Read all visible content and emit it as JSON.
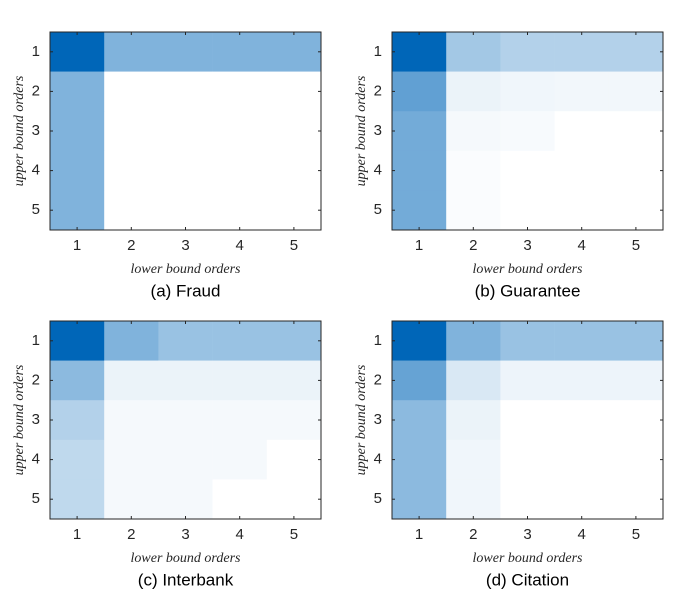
{
  "chart_data": [
    {
      "type": "heatmap",
      "title": "(a) Fraud",
      "xlabel": "lower bound orders",
      "ylabel": "upper bound orders",
      "xlim": [
        0.5,
        5.5
      ],
      "ylim": [
        0.5,
        5.5
      ],
      "xticks": [
        1,
        2,
        3,
        4,
        5
      ],
      "yticks": [
        1,
        2,
        3,
        4,
        5
      ],
      "zlim": [
        0,
        1
      ],
      "colors": [
        "#ffffff",
        "#0066b8"
      ],
      "values": [
        [
          1,
          0.5,
          0.5,
          0.5,
          0.5
        ],
        [
          0.5,
          0,
          0,
          0,
          0
        ],
        [
          0.5,
          0,
          0,
          0,
          0
        ],
        [
          0.5,
          0,
          0,
          0,
          0
        ],
        [
          0.5,
          0,
          0,
          0,
          0
        ]
      ]
    },
    {
      "type": "heatmap",
      "title": "(b) Guarantee",
      "xlabel": "lower bound orders",
      "ylabel": "upper bound orders",
      "xlim": [
        0.5,
        5.5
      ],
      "ylim": [
        0.5,
        5.5
      ],
      "xticks": [
        1,
        2,
        3,
        4,
        5
      ],
      "yticks": [
        1,
        2,
        3,
        4,
        5
      ],
      "zlim": [
        0,
        1
      ],
      "colors": [
        "#ffffff",
        "#0066b8"
      ],
      "values": [
        [
          1,
          0.36,
          0.3,
          0.3,
          0.3
        ],
        [
          0.62,
          0.08,
          0.06,
          0.05,
          0.05
        ],
        [
          0.55,
          0.04,
          0.03,
          0,
          0
        ],
        [
          0.55,
          0.02,
          0,
          0,
          0
        ],
        [
          0.55,
          0.02,
          0,
          0,
          0
        ]
      ]
    },
    {
      "type": "heatmap",
      "title": "(c) Interbank",
      "xlabel": "lower bound orders",
      "ylabel": "upper bound orders",
      "xlim": [
        0.5,
        5.5
      ],
      "ylim": [
        0.5,
        5.5
      ],
      "xticks": [
        1,
        2,
        3,
        4,
        5
      ],
      "yticks": [
        1,
        2,
        3,
        4,
        5
      ],
      "zlim": [
        0,
        1
      ],
      "colors": [
        "#ffffff",
        "#0066b8"
      ],
      "values": [
        [
          1,
          0.5,
          0.4,
          0.4,
          0.4
        ],
        [
          0.45,
          0.08,
          0.08,
          0.08,
          0.08
        ],
        [
          0.3,
          0.04,
          0.04,
          0.04,
          0.04
        ],
        [
          0.25,
          0.04,
          0.04,
          0.04,
          0
        ],
        [
          0.25,
          0.04,
          0.04,
          0,
          0
        ]
      ]
    },
    {
      "type": "heatmap",
      "title": "(d) Citation",
      "xlabel": "lower bound orders",
      "ylabel": "upper bound orders",
      "xlim": [
        0.5,
        5.5
      ],
      "ylim": [
        0.5,
        5.5
      ],
      "xticks": [
        1,
        2,
        3,
        4,
        5
      ],
      "yticks": [
        1,
        2,
        3,
        4,
        5
      ],
      "zlim": [
        0,
        1
      ],
      "colors": [
        "#ffffff",
        "#0066b8"
      ],
      "values": [
        [
          1,
          0.5,
          0.4,
          0.4,
          0.4
        ],
        [
          0.6,
          0.15,
          0.07,
          0.07,
          0.07
        ],
        [
          0.45,
          0.08,
          0,
          0,
          0
        ],
        [
          0.45,
          0.06,
          0,
          0,
          0
        ],
        [
          0.45,
          0.06,
          0,
          0,
          0
        ]
      ]
    }
  ]
}
